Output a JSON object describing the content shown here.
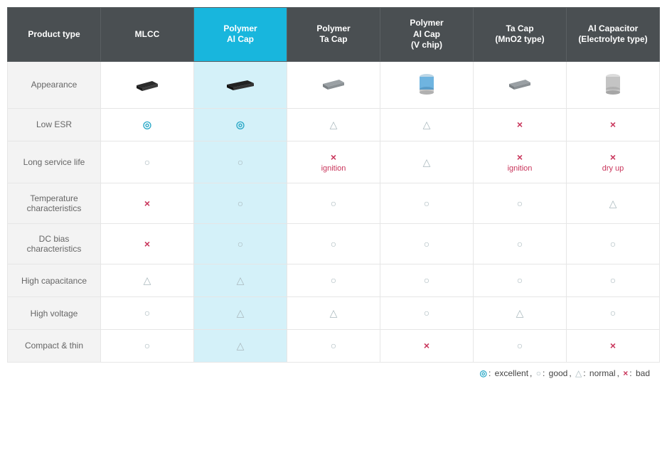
{
  "colors": {
    "header_bg": "#4a4f52",
    "header_highlight": "#18b6dd",
    "cell_highlight": "#d4f1f9",
    "row_label_bg": "#f3f3f3",
    "border": "#e6e6e6",
    "excellent": "#2aa8c7",
    "good": "#a9b8bd",
    "normal": "#a9b8bd",
    "bad": "#c9355b",
    "text": "#555"
  },
  "typography": {
    "base_fontsize": 12,
    "symbol_fontsize": 14,
    "subtext_fontsize": 11
  },
  "symbols": {
    "excellent": "◎",
    "good": "○",
    "normal": "△",
    "bad": "×"
  },
  "columns": [
    {
      "key": "product_type",
      "label": "Product type",
      "highlight": false
    },
    {
      "key": "mlcc",
      "label": "MLCC",
      "highlight": false
    },
    {
      "key": "polymer_al",
      "label": "Polymer\nAl Cap",
      "highlight": true
    },
    {
      "key": "polymer_ta",
      "label": "Polymer\nTa Cap",
      "highlight": false
    },
    {
      "key": "polymer_al_vchip",
      "label": "Polymer\nAl Cap\n(V chip)",
      "highlight": false
    },
    {
      "key": "ta_mno2",
      "label": "Ta Cap\n(MnO2 type)",
      "highlight": false
    },
    {
      "key": "al_electrolyte",
      "label": "Al Capacitor\n(Electrolyte type)",
      "highlight": false
    }
  ],
  "rows": [
    {
      "label": "Appearance",
      "type": "icons",
      "cells": [
        {
          "icon": "mlcc"
        },
        {
          "icon": "chip_black"
        },
        {
          "icon": "chip_gray"
        },
        {
          "icon": "can_blue"
        },
        {
          "icon": "chip_gray"
        },
        {
          "icon": "can_gray"
        }
      ]
    },
    {
      "label": "Low ESR",
      "cells": [
        {
          "rating": "excellent"
        },
        {
          "rating": "excellent"
        },
        {
          "rating": "normal"
        },
        {
          "rating": "normal"
        },
        {
          "rating": "bad"
        },
        {
          "rating": "bad"
        }
      ]
    },
    {
      "label": "Long service life",
      "cells": [
        {
          "rating": "good"
        },
        {
          "rating": "good"
        },
        {
          "rating": "bad",
          "subtext": "ignition"
        },
        {
          "rating": "normal"
        },
        {
          "rating": "bad",
          "subtext": "ignition"
        },
        {
          "rating": "bad",
          "subtext": "dry up"
        }
      ]
    },
    {
      "label": "Temperature characteristics",
      "cells": [
        {
          "rating": "bad"
        },
        {
          "rating": "good"
        },
        {
          "rating": "good"
        },
        {
          "rating": "good"
        },
        {
          "rating": "good"
        },
        {
          "rating": "normal"
        }
      ]
    },
    {
      "label": "DC bias characteristics",
      "cells": [
        {
          "rating": "bad"
        },
        {
          "rating": "good"
        },
        {
          "rating": "good"
        },
        {
          "rating": "good"
        },
        {
          "rating": "good"
        },
        {
          "rating": "good"
        }
      ]
    },
    {
      "label": "High capacitance",
      "cells": [
        {
          "rating": "normal"
        },
        {
          "rating": "normal"
        },
        {
          "rating": "good"
        },
        {
          "rating": "good"
        },
        {
          "rating": "good"
        },
        {
          "rating": "good"
        }
      ]
    },
    {
      "label": "High voltage",
      "cells": [
        {
          "rating": "good"
        },
        {
          "rating": "normal"
        },
        {
          "rating": "normal"
        },
        {
          "rating": "good"
        },
        {
          "rating": "normal"
        },
        {
          "rating": "good"
        }
      ]
    },
    {
      "label": "Compact & thin",
      "cells": [
        {
          "rating": "good"
        },
        {
          "rating": "normal"
        },
        {
          "rating": "good"
        },
        {
          "rating": "bad"
        },
        {
          "rating": "good"
        },
        {
          "rating": "bad"
        }
      ]
    }
  ],
  "legend": {
    "items": [
      {
        "sym": "◎",
        "label": "excellent",
        "class": "sym-excellent"
      },
      {
        "sym": "○",
        "label": "good",
        "class": "sym-good"
      },
      {
        "sym": "△",
        "label": "normal",
        "class": "sym-normal"
      },
      {
        "sym": "×",
        "label": "bad",
        "class": "sym-bad"
      }
    ]
  }
}
